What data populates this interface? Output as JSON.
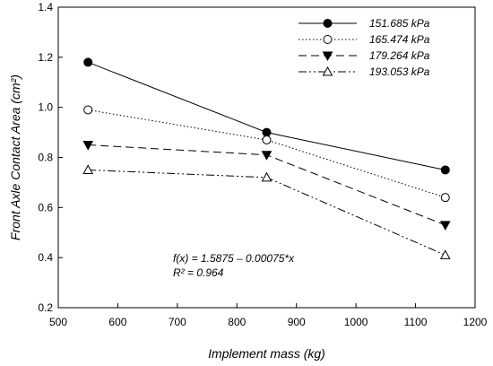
{
  "chart_data": {
    "type": "line",
    "title": "",
    "xlabel": "Implement mass (kg)",
    "ylabel": "Front Axle Contact Area (cm²)",
    "xlim": [
      500,
      1200
    ],
    "ylim": [
      0.2,
      1.4
    ],
    "xticks": [
      500,
      600,
      700,
      800,
      900,
      1000,
      1100,
      1200
    ],
    "yticks": [
      0.2,
      0.4,
      0.6,
      0.8,
      1.0,
      1.2,
      1.4
    ],
    "ytick_labels": [
      "0.2",
      "0.4",
      "0.6",
      "0.8",
      "1.0",
      "1.2",
      "1.4"
    ],
    "grid": false,
    "legend_position": "top-right",
    "x": [
      550,
      850,
      1150
    ],
    "series": [
      {
        "name": "151.685 kPa",
        "values": [
          1.18,
          0.9,
          0.75
        ],
        "marker": "filled-circle",
        "dash": "solid"
      },
      {
        "name": "165.474 kPa",
        "values": [
          0.99,
          0.87,
          0.64
        ],
        "marker": "open-circle",
        "dash": "dotted"
      },
      {
        "name": "179.264 kPa",
        "values": [
          0.85,
          0.81,
          0.53
        ],
        "marker": "filled-triangle-down",
        "dash": "dashed"
      },
      {
        "name": "193.053 kPa",
        "values": [
          0.75,
          0.72,
          0.41
        ],
        "marker": "open-triangle-up",
        "dash": "dash-dot-dot"
      }
    ],
    "annotations": [
      "f(x) = 1.5875 – 0.00075*x",
      "R² =   0.964"
    ]
  }
}
